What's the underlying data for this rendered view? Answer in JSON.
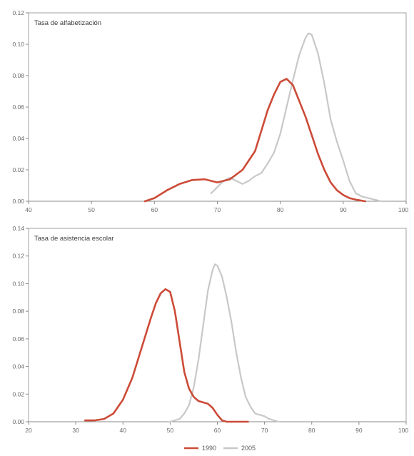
{
  "chart_data": [
    {
      "type": "line",
      "title": "Tasa de alfabetización",
      "xlim": [
        40,
        100
      ],
      "ylim": [
        0,
        0.12
      ],
      "x_ticks": [
        "40",
        "50",
        "60",
        "70",
        "80",
        "90",
        "100"
      ],
      "y_ticks": [
        "0.00",
        "0.02",
        "0.04",
        "0.06",
        "0.08",
        "0.10",
        "0.12"
      ],
      "grid": false,
      "series": [
        {
          "name": "1990",
          "color": "#cc4b37",
          "points": [
            [
              58.5,
              0.0
            ],
            [
              60,
              0.002
            ],
            [
              62,
              0.007
            ],
            [
              64,
              0.011
            ],
            [
              66,
              0.0135
            ],
            [
              68,
              0.014
            ],
            [
              70,
              0.012
            ],
            [
              72,
              0.014
            ],
            [
              74,
              0.02
            ],
            [
              76,
              0.032
            ],
            [
              78,
              0.058
            ],
            [
              79,
              0.068
            ],
            [
              80,
              0.076
            ],
            [
              81,
              0.078
            ],
            [
              82,
              0.074
            ],
            [
              83,
              0.064
            ],
            [
              84,
              0.054
            ],
            [
              85,
              0.042
            ],
            [
              86,
              0.03
            ],
            [
              87,
              0.02
            ],
            [
              88,
              0.012
            ],
            [
              89,
              0.007
            ],
            [
              90,
              0.004
            ],
            [
              91,
              0.002
            ],
            [
              92,
              0.001
            ],
            [
              93.5,
              0.0
            ]
          ]
        },
        {
          "name": "2005",
          "color": "#c8c8c8",
          "points": [
            [
              69,
              0.005
            ],
            [
              70,
              0.009
            ],
            [
              71,
              0.013
            ],
            [
              72,
              0.015
            ],
            [
              73,
              0.013
            ],
            [
              74,
              0.011
            ],
            [
              75,
              0.013
            ],
            [
              76,
              0.016
            ],
            [
              77,
              0.018
            ],
            [
              78,
              0.024
            ],
            [
              79,
              0.031
            ],
            [
              80,
              0.043
            ],
            [
              81,
              0.06
            ],
            [
              82,
              0.077
            ],
            [
              83,
              0.093
            ],
            [
              84,
              0.104
            ],
            [
              84.5,
              0.107
            ],
            [
              85,
              0.106
            ],
            [
              86,
              0.094
            ],
            [
              87,
              0.075
            ],
            [
              88,
              0.052
            ],
            [
              89,
              0.038
            ],
            [
              90,
              0.026
            ],
            [
              91,
              0.013
            ],
            [
              92,
              0.005
            ],
            [
              93,
              0.003
            ],
            [
              94,
              0.002
            ],
            [
              95,
              0.001
            ],
            [
              96,
              0.0
            ]
          ]
        }
      ]
    },
    {
      "type": "line",
      "title": "Tasa de asistencia escolar",
      "xlim": [
        20,
        100
      ],
      "ylim": [
        0,
        0.14
      ],
      "x_ticks": [
        "20",
        "30",
        "40",
        "50",
        "60",
        "70",
        "80",
        "90",
        "100"
      ],
      "y_ticks": [
        "0.00",
        "0.02",
        "0.04",
        "0.06",
        "0.08",
        "0.10",
        "0.12",
        "0.14"
      ],
      "grid": false,
      "series": [
        {
          "name": "1990",
          "color": "#cc4b37",
          "points": [
            [
              32,
              0.001
            ],
            [
              34,
              0.001
            ],
            [
              36,
              0.002
            ],
            [
              38,
              0.006
            ],
            [
              40,
              0.016
            ],
            [
              42,
              0.032
            ],
            [
              44,
              0.054
            ],
            [
              46,
              0.076
            ],
            [
              47,
              0.086
            ],
            [
              48,
              0.093
            ],
            [
              49,
              0.096
            ],
            [
              50,
              0.094
            ],
            [
              51,
              0.08
            ],
            [
              52,
              0.058
            ],
            [
              53,
              0.036
            ],
            [
              54,
              0.024
            ],
            [
              55,
              0.018
            ],
            [
              56,
              0.015
            ],
            [
              57,
              0.014
            ],
            [
              58,
              0.013
            ],
            [
              59,
              0.01
            ],
            [
              60,
              0.005
            ],
            [
              61,
              0.001
            ],
            [
              62,
              0.0
            ],
            [
              64,
              0.0
            ],
            [
              66.5,
              0.0
            ]
          ]
        },
        {
          "name": "2005",
          "color": "#c8c8c8",
          "points": [
            [
              50,
              0.0
            ],
            [
              52,
              0.002
            ],
            [
              53,
              0.006
            ],
            [
              54,
              0.012
            ],
            [
              55,
              0.025
            ],
            [
              56,
              0.045
            ],
            [
              57,
              0.07
            ],
            [
              58,
              0.095
            ],
            [
              59,
              0.11
            ],
            [
              59.5,
              0.114
            ],
            [
              60,
              0.113
            ],
            [
              61,
              0.105
            ],
            [
              62,
              0.09
            ],
            [
              63,
              0.072
            ],
            [
              64,
              0.05
            ],
            [
              65,
              0.032
            ],
            [
              66,
              0.018
            ],
            [
              67,
              0.011
            ],
            [
              68,
              0.006
            ],
            [
              70,
              0.004
            ],
            [
              71,
              0.002
            ],
            [
              73,
              0.0
            ]
          ]
        }
      ]
    }
  ],
  "legend": {
    "placement": "bottom-center",
    "items": [
      {
        "label": "1990",
        "color": "#cc4b37"
      },
      {
        "label": "2005",
        "color": "#c8c8c8"
      }
    ]
  }
}
